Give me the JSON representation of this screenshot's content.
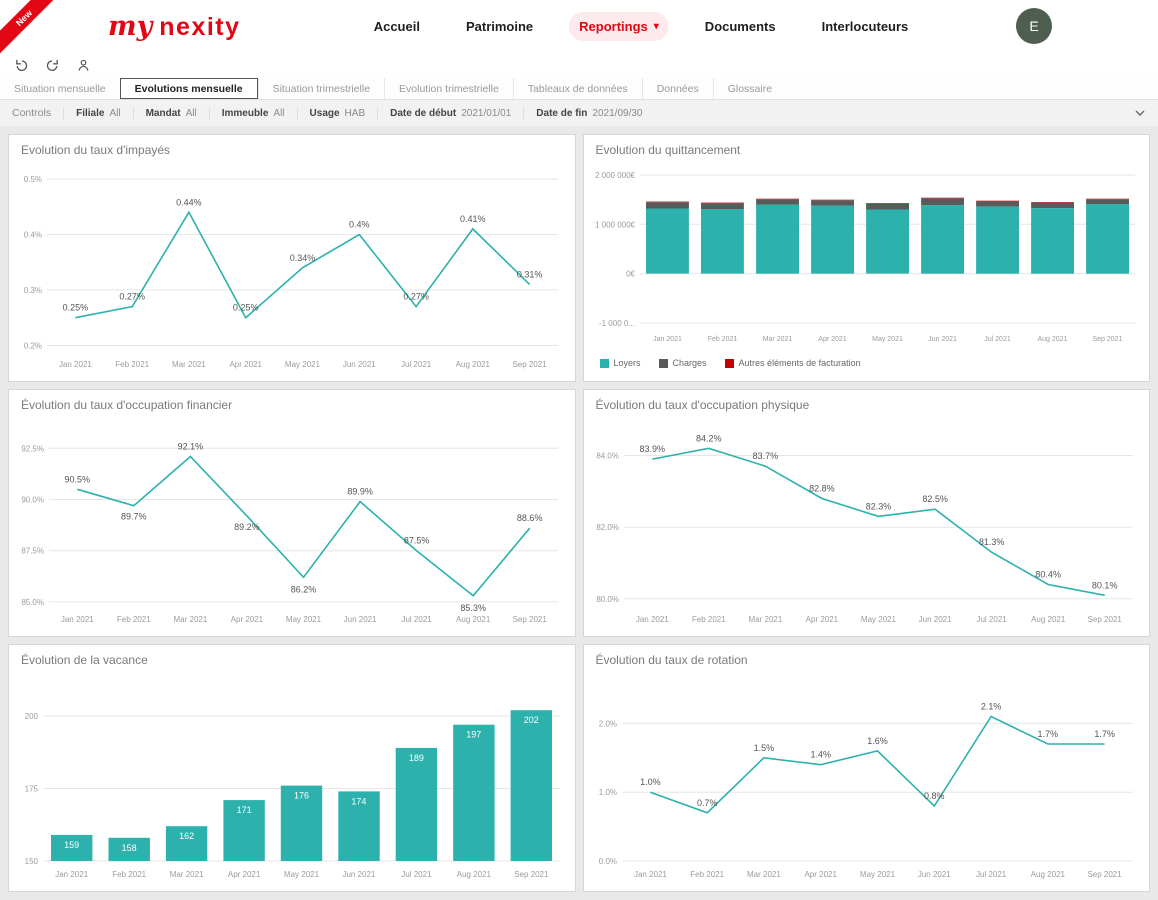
{
  "brand": {
    "logo_script": "my",
    "logo_word": "nexity",
    "ribbon_label": "New"
  },
  "nav": {
    "items": [
      {
        "label": "Accueil"
      },
      {
        "label": "Patrimoine"
      },
      {
        "label": "Reportings"
      },
      {
        "label": "Documents"
      },
      {
        "label": "Interlocuteurs"
      }
    ]
  },
  "user": {
    "avatar_initial": "E"
  },
  "icons": {
    "chevron_down": "▾"
  },
  "tabs": [
    {
      "label": "Situation mensuelle"
    },
    {
      "label": "Evolutions mensuelle"
    },
    {
      "label": "Situation trimestrielle"
    },
    {
      "label": "Evolution trimestrielle"
    },
    {
      "label": "Tableaux de données"
    },
    {
      "label": "Données"
    },
    {
      "label": "Glossaire"
    }
  ],
  "controls": {
    "title": "Controls",
    "filters": [
      {
        "label": "Filiale",
        "value": "All"
      },
      {
        "label": "Mandat",
        "value": "All"
      },
      {
        "label": "Immeuble",
        "value": "All"
      },
      {
        "label": "Usage",
        "value": "HAB"
      },
      {
        "label": "Date de début",
        "value": "2021/01/01"
      },
      {
        "label": "Date de fin",
        "value": "2021/09/30"
      }
    ]
  },
  "colors": {
    "teal": "#2CB1AC",
    "charges": "#5a5a5a",
    "red": "#c40000",
    "brand_red": "#e30613"
  },
  "chart_data": [
    {
      "type": "line",
      "title": "Evolution du taux d'impayés",
      "categories": [
        "Jan 2021",
        "Feb 2021",
        "Mar 2021",
        "Apr 2021",
        "May 2021",
        "Jun 2021",
        "Jul 2021",
        "Aug 2021",
        "Sep 2021"
      ],
      "values": [
        0.25,
        0.27,
        0.44,
        0.25,
        0.34,
        0.4,
        0.27,
        0.41,
        0.31
      ],
      "labels": [
        "0.25%",
        "0.27%",
        "0.44%",
        "0.25%",
        "0.34%",
        "0.4%",
        "0.27%",
        "0.41%",
        "0.31%"
      ],
      "ylim": [
        0.19,
        0.5
      ],
      "yticks": [
        {
          "v": 0.2,
          "label": "0.2%"
        },
        {
          "v": 0.3,
          "label": "0.3%"
        },
        {
          "v": 0.4,
          "label": "0.4%"
        },
        {
          "v": 0.5,
          "label": "0.5%"
        }
      ],
      "color": "#2CB1AC",
      "margins": {
        "l": 38,
        "r": 16,
        "t": 16,
        "b": 24
      }
    },
    {
      "type": "stacked-bar",
      "title": "Evolution du quittancement",
      "categories": [
        "Jan 2021",
        "Feb 2021",
        "Mar 2021",
        "Apr 2021",
        "May 2021",
        "Jun 2021",
        "Jul 2021",
        "Aug 2021",
        "Sep 2021"
      ],
      "series": [
        {
          "name": "Loyers",
          "color": "#2CB1AC",
          "values": [
            1320000,
            1310000,
            1400000,
            1380000,
            1300000,
            1390000,
            1360000,
            1330000,
            1410000
          ]
        },
        {
          "name": "Charges",
          "color": "#5a5a5a",
          "values": [
            130000,
            120000,
            110000,
            110000,
            120000,
            140000,
            110000,
            110000,
            100000
          ]
        },
        {
          "name": "Autres éléments de facturation",
          "color": "#c40000",
          "values": [
            10000,
            10000,
            10000,
            10000,
            10000,
            10000,
            10000,
            10000,
            10000
          ]
        }
      ],
      "ylim": [
        -1000000,
        2000000
      ],
      "yticks": [
        {
          "v": 2000000,
          "label": "2 000 000€"
        },
        {
          "v": 1000000,
          "label": "1 000 000€"
        },
        {
          "v": 0,
          "label": "0€"
        },
        {
          "v": -1000000,
          "label": "-1 000 0..."
        }
      ],
      "xtick_size": 7,
      "margins": {
        "l": 56,
        "r": 14,
        "t": 12,
        "b": 26
      }
    },
    {
      "type": "line",
      "title": "Évolution du taux d'occupation financier",
      "categories": [
        "Jan 2021",
        "Feb 2021",
        "Mar 2021",
        "Apr 2021",
        "May 2021",
        "Jun 2021",
        "Jul 2021",
        "Aug 2021",
        "Sep 2021"
      ],
      "values": [
        90.5,
        89.7,
        92.1,
        89.2,
        86.2,
        89.9,
        87.5,
        85.3,
        88.6
      ],
      "labels": [
        "90.5%",
        "89.7%",
        "92.1%",
        "89.2%",
        "86.2%",
        "89.9%",
        "87.5%",
        "85.3%",
        "88.6%"
      ],
      "label_offsets": [
        -7,
        14,
        -7,
        14,
        15,
        -7,
        -7,
        15,
        -7
      ],
      "ylim": [
        84.8,
        93.2
      ],
      "yticks": [
        {
          "v": 85,
          "label": "85.0%"
        },
        {
          "v": 87.5,
          "label": "87.5%"
        },
        {
          "v": 90,
          "label": "90.0%"
        },
        {
          "v": 92.5,
          "label": "92.5%"
        }
      ],
      "color": "#2CB1AC",
      "margins": {
        "l": 40,
        "r": 16,
        "t": 16,
        "b": 24
      }
    },
    {
      "type": "line",
      "title": "Évolution du taux d'occupation physique",
      "categories": [
        "Jan 2021",
        "Feb 2021",
        "Mar 2021",
        "Apr 2021",
        "May 2021",
        "Jun 2021",
        "Jul 2021",
        "Aug 2021",
        "Sep 2021"
      ],
      "values": [
        83.9,
        84.2,
        83.7,
        82.8,
        82.3,
        82.5,
        81.3,
        80.4,
        80.1
      ],
      "labels": [
        "83.9%",
        "84.2%",
        "83.7%",
        "82.8%",
        "82.3%",
        "82.5%",
        "81.3%",
        "80.4%",
        "80.1%"
      ],
      "ylim": [
        79.8,
        84.6
      ],
      "yticks": [
        {
          "v": 80,
          "label": "80.0%"
        },
        {
          "v": 82,
          "label": "82.0%"
        },
        {
          "v": 84,
          "label": "84.0%"
        }
      ],
      "color": "#2CB1AC",
      "margins": {
        "l": 40,
        "r": 16,
        "t": 16,
        "b": 24
      }
    },
    {
      "type": "bar",
      "title": "Évolution de la vacance",
      "categories": [
        "Jan 2021",
        "Feb 2021",
        "Mar 2021",
        "Apr 2021",
        "May 2021",
        "Jun 2021",
        "Jul 2021",
        "Aug 2021",
        "Sep 2021"
      ],
      "values": [
        159,
        158,
        162,
        171,
        176,
        174,
        189,
        197,
        202
      ],
      "labels": [
        "159",
        "158",
        "162",
        "171",
        "176",
        "174",
        "189",
        "197",
        "202"
      ],
      "ylim": [
        150,
        210
      ],
      "yticks": [
        {
          "v": 150,
          "label": "150"
        },
        {
          "v": 175,
          "label": "175"
        },
        {
          "v": 200,
          "label": "200"
        }
      ],
      "color": "#2CB1AC",
      "margins": {
        "l": 34,
        "r": 14,
        "t": 14,
        "b": 24
      }
    },
    {
      "type": "line",
      "title": "Évolution du taux de rotation",
      "categories": [
        "Jan 2021",
        "Feb 2021",
        "Mar 2021",
        "Apr 2021",
        "May 2021",
        "Jun 2021",
        "Jul 2021",
        "Aug 2021",
        "Sep 2021"
      ],
      "values": [
        1.0,
        0.7,
        1.5,
        1.4,
        1.6,
        0.8,
        2.1,
        1.7,
        1.7
      ],
      "labels": [
        "1.0%",
        "0.7%",
        "1.5%",
        "1.4%",
        "1.6%",
        "0.8%",
        "2.1%",
        "1.7%",
        "1.7%"
      ],
      "ylim": [
        0,
        2.5
      ],
      "yticks": [
        {
          "v": 0,
          "label": "0.0%"
        },
        {
          "v": 1,
          "label": "1.0%"
        },
        {
          "v": 2,
          "label": "2.0%"
        }
      ],
      "color": "#2CB1AC",
      "margins": {
        "l": 38,
        "r": 16,
        "t": 16,
        "b": 24
      }
    }
  ]
}
